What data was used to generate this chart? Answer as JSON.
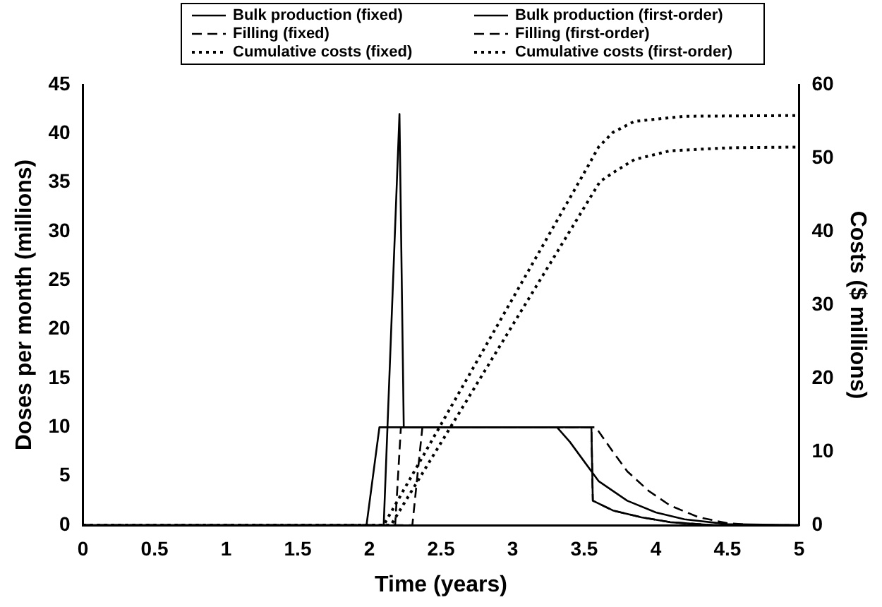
{
  "chart_data": {
    "type": "line",
    "xlabel": "Time (years)",
    "ylabel": "Doses per month (millions)",
    "y2label": "Costs ($ millions)",
    "xlim": [
      0,
      5
    ],
    "xticks": [
      0,
      0.5,
      1,
      1.5,
      2,
      2.5,
      3,
      3.5,
      4,
      4.5,
      5
    ],
    "ylim": [
      0,
      45
    ],
    "yticks": [
      0,
      5,
      10,
      15,
      20,
      25,
      30,
      35,
      40,
      45
    ],
    "y2lim": [
      0,
      60
    ],
    "y2ticks": [
      0,
      10,
      20,
      30,
      40,
      50,
      60
    ],
    "grid": false,
    "legend": "top",
    "marker": "none",
    "series": [
      {
        "name": "Bulk production (fixed)",
        "color": "#000000",
        "line_style": "solid",
        "x": [
          0,
          1.98,
          2.07,
          3.31,
          3.4,
          3.5,
          3.6,
          3.8,
          4.0,
          4.2,
          4.5,
          5
        ],
        "values": [
          0,
          0,
          10,
          10,
          8.5,
          6.5,
          4.5,
          2.5,
          1.3,
          0.6,
          0.1,
          0
        ]
      },
      {
        "name": "Bulk production (first-order)",
        "color": "#000000",
        "line_style": "solid",
        "x": [
          0,
          2.1,
          2.21,
          2.24,
          3.55,
          3.56,
          3.7,
          3.9,
          4.1,
          4.4,
          5
        ],
        "values": [
          0,
          0,
          42,
          10,
          10,
          2.5,
          1.5,
          0.8,
          0.3,
          0,
          0
        ]
      },
      {
        "name": "Filling (fixed)",
        "color": "#000000",
        "line_style": "dashed",
        "x": [
          0,
          2.18,
          2.22,
          3.55,
          3.56,
          3.7,
          3.9,
          4.1,
          4.4,
          5
        ],
        "values": [
          0,
          0,
          10,
          10,
          2.5,
          1.5,
          0.8,
          0.3,
          0,
          0
        ]
      },
      {
        "name": "Filling (first-order)",
        "color": "#000000",
        "line_style": "dashed",
        "x": [
          0,
          2.3,
          2.37,
          3.58,
          3.7,
          3.8,
          3.95,
          4.1,
          4.3,
          4.5,
          4.7,
          5
        ],
        "values": [
          0,
          0,
          10,
          10,
          7.5,
          5.5,
          3.5,
          2,
          0.8,
          0.2,
          0,
          0
        ]
      },
      {
        "name": "Cumulative costs (fixed)",
        "color": "#000000",
        "line_style": "dotted",
        "axis": "y2",
        "x": [
          0,
          2.15,
          3.61,
          3.7,
          3.85,
          4.1,
          4.5,
          5
        ],
        "values": [
          0,
          0,
          46.8,
          48,
          49.8,
          51,
          51.4,
          51.5
        ]
      },
      {
        "name": "Cumulative costs (first-order)",
        "color": "#000000",
        "line_style": "dotted",
        "axis": "y2",
        "x": [
          0,
          2.1,
          3.5,
          3.6,
          3.7,
          3.85,
          4.2,
          5
        ],
        "values": [
          0,
          0,
          48,
          51.5,
          53.5,
          55,
          55.7,
          55.8
        ]
      }
    ]
  }
}
